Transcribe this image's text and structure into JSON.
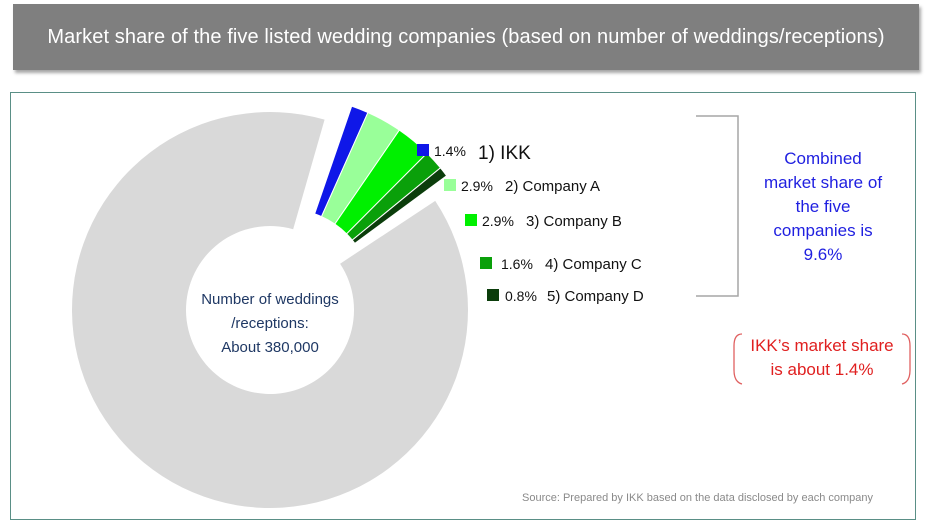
{
  "title": "Market share of the five listed wedding companies (based on number of weddings/receptions)",
  "center_label": {
    "line1": "Number of weddings",
    "line2": "/receptions:",
    "line3": "About 380,000"
  },
  "chart_data": {
    "type": "pie",
    "slices": [
      {
        "rank": "1)",
        "name": "IKK",
        "value": 1.4,
        "value_label": "1.4%",
        "color": "#0f17e8"
      },
      {
        "rank": "2)",
        "name": "Company A",
        "value": 2.9,
        "value_label": "2.9%",
        "color": "#99ff99"
      },
      {
        "rank": "3)",
        "name": "Company B",
        "value": 2.9,
        "value_label": "2.9%",
        "color": "#00f000"
      },
      {
        "rank": "4)",
        "name": "Company C",
        "value": 1.6,
        "value_label": "1.6%",
        "color": "#0aa00a"
      },
      {
        "rank": "5)",
        "name": "Company D",
        "value": 0.8,
        "value_label": "0.8%",
        "color": "#0b3d0b"
      }
    ],
    "remainder": {
      "value": 90.4,
      "color": "#d9d9d9"
    },
    "exploded": true,
    "donut": true
  },
  "combined_note": {
    "line1": "Combined",
    "line2": "market share of",
    "line3": "the five",
    "line4": "companies is",
    "line5": "9.6%"
  },
  "ikk_note": {
    "line1": "IKK’s market share",
    "line2": "is about 1.4%"
  },
  "source": "Source: Prepared by IKK based on  the data disclosed by each company",
  "colors": {
    "title_bg": "#7f7f7f",
    "frame": "#5a8f86",
    "combined_text": "#1f1fe0",
    "ikk_note_text": "#e02020"
  }
}
